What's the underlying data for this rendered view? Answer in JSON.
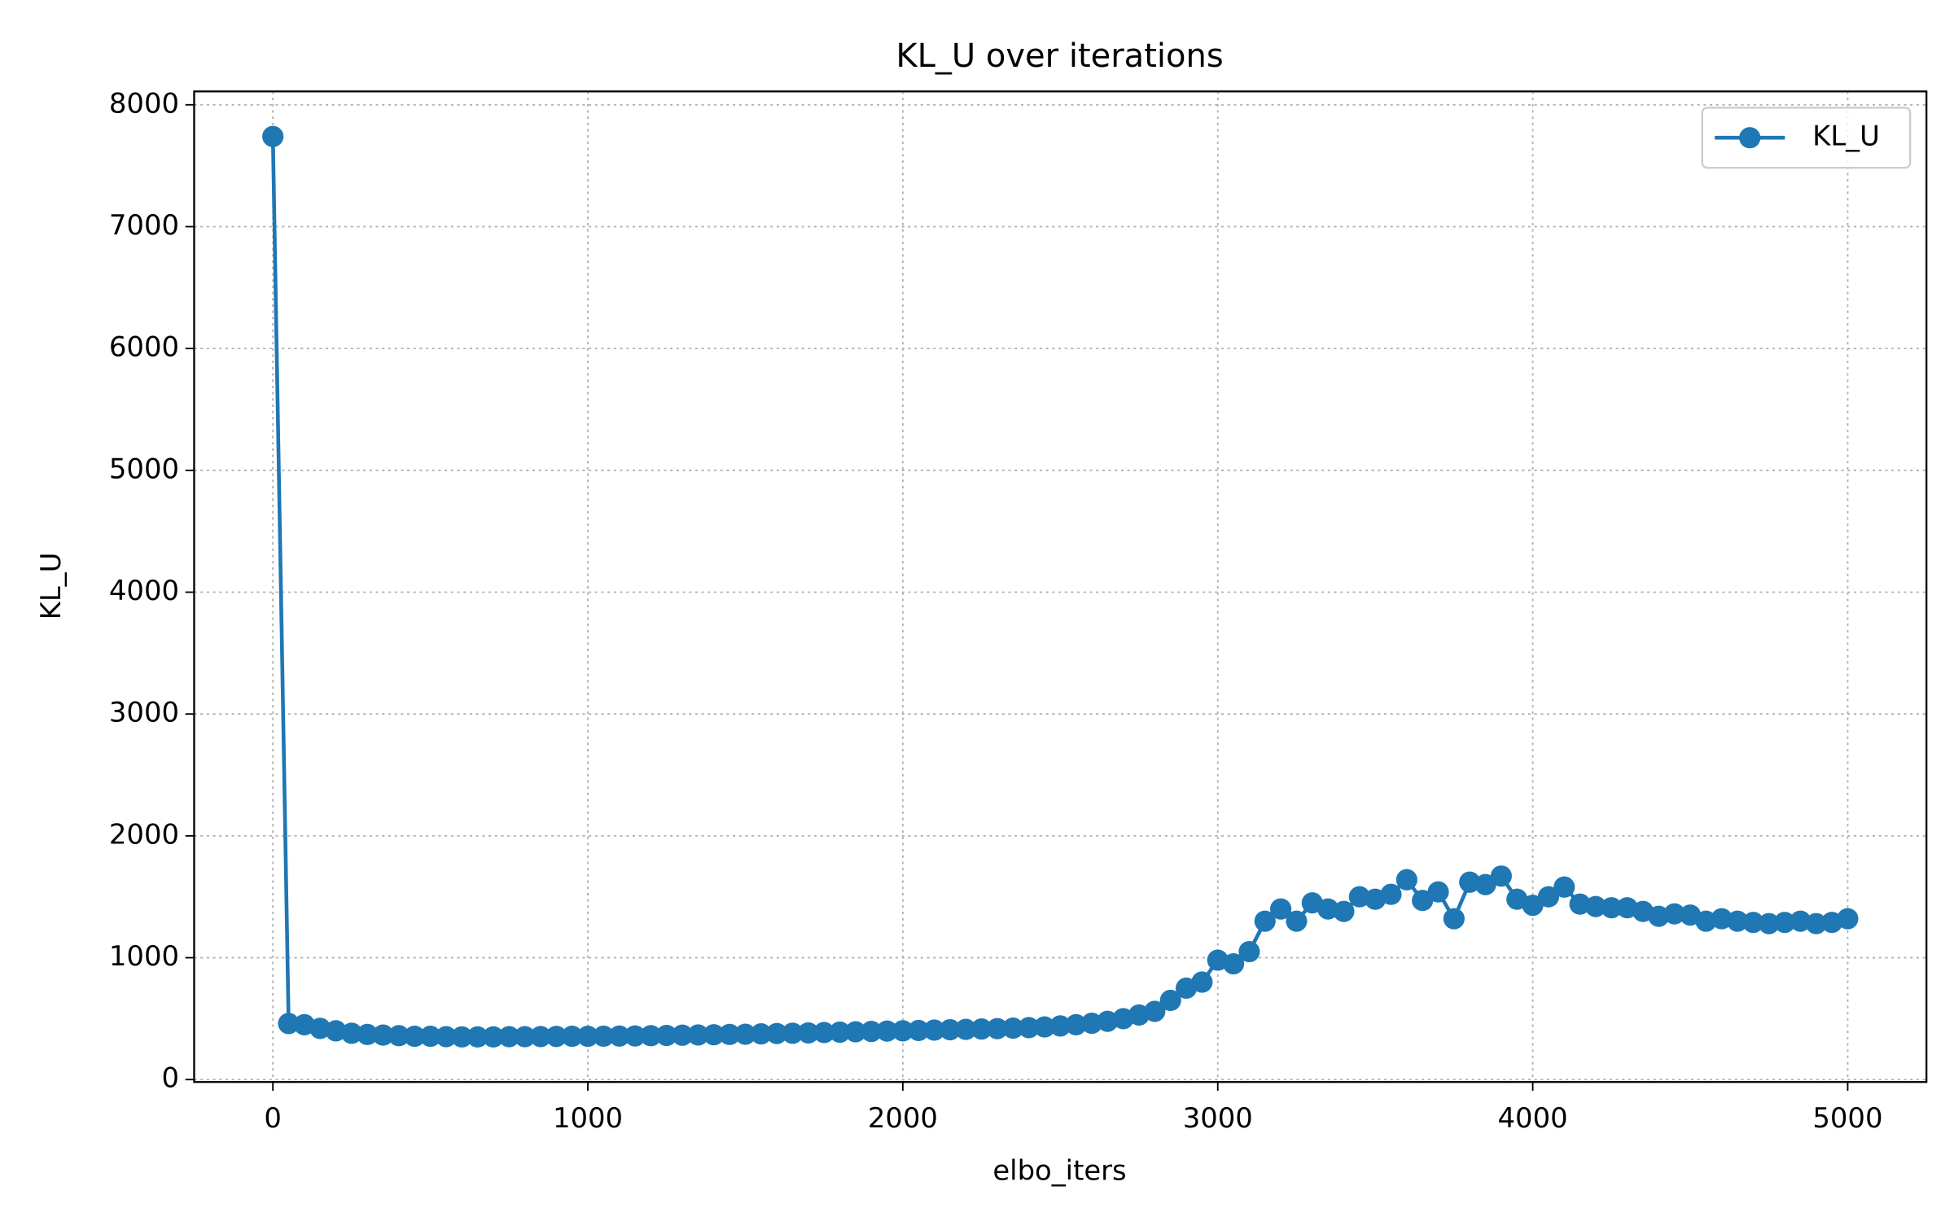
{
  "chart_data": {
    "type": "line",
    "title": "KL_U over iterations",
    "x_label": "elbo_iters",
    "y_label": "KL_U",
    "x": [
      0,
      50,
      100,
      150,
      200,
      250,
      300,
      350,
      400,
      450,
      500,
      550,
      600,
      650,
      700,
      750,
      800,
      850,
      900,
      950,
      1000,
      1050,
      1100,
      1150,
      1200,
      1250,
      1300,
      1350,
      1400,
      1450,
      1500,
      1550,
      1600,
      1650,
      1700,
      1750,
      1800,
      1850,
      1900,
      1950,
      2000,
      2050,
      2100,
      2150,
      2200,
      2250,
      2300,
      2350,
      2400,
      2450,
      2500,
      2550,
      2600,
      2650,
      2700,
      2750,
      2800,
      2850,
      2900,
      2950,
      3000,
      3050,
      3100,
      3150,
      3200,
      3250,
      3300,
      3350,
      3400,
      3450,
      3500,
      3550,
      3600,
      3650,
      3700,
      3750,
      3800,
      3850,
      3900,
      3950,
      4000,
      4050,
      4100,
      4150,
      4200,
      4250,
      4300,
      4350,
      4400,
      4450,
      4500,
      4550,
      4600,
      4650,
      4700,
      4750,
      4800,
      4850,
      4900,
      4950,
      5000
    ],
    "series": [
      {
        "name": "KL_U",
        "color": "#1f77b4",
        "values": [
          7740,
          460,
          450,
          420,
          400,
          380,
          370,
          365,
          360,
          355,
          355,
          352,
          350,
          350,
          350,
          352,
          352,
          353,
          354,
          355,
          355,
          356,
          357,
          358,
          360,
          362,
          364,
          366,
          368,
          370,
          372,
          375,
          378,
          380,
          383,
          386,
          389,
          392,
          395,
          398,
          400,
          403,
          406,
          409,
          412,
          415,
          418,
          422,
          426,
          432,
          440,
          450,
          462,
          478,
          500,
          530,
          560,
          650,
          750,
          800,
          980,
          950,
          1050,
          1300,
          1400,
          1300,
          1450,
          1400,
          1380,
          1500,
          1480,
          1520,
          1640,
          1470,
          1540,
          1320,
          1620,
          1600,
          1670,
          1480,
          1430,
          1500,
          1580,
          1440,
          1420,
          1410,
          1410,
          1380,
          1340,
          1360,
          1350,
          1300,
          1320,
          1300,
          1290,
          1280,
          1290,
          1300,
          1280,
          1290,
          1320
        ]
      }
    ],
    "xlim": [
      -250,
      5250
    ],
    "ylim": [
      -20,
      8110
    ],
    "xticks": [
      0,
      1000,
      2000,
      3000,
      4000,
      5000
    ],
    "yticks": [
      0,
      1000,
      2000,
      3000,
      4000,
      5000,
      6000,
      7000,
      8000
    ],
    "grid": true,
    "legend": "upper right"
  }
}
